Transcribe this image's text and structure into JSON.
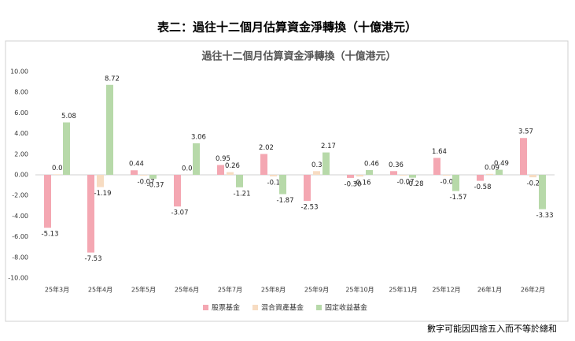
{
  "heading": "表二：過往十二個月估算資金淨轉換（十億港元）",
  "note": "數字可能因四捨五入而不等於總和",
  "chart_data": {
    "type": "bar",
    "title": "過往十二個月估算資金淨轉換（十億港元）",
    "categories": [
      "25年3月",
      "25年4月",
      "25年5月",
      "25年6月",
      "25年7月",
      "25年8月",
      "25年9月",
      "25年10月",
      "25年11月",
      "25年12月",
      "26年1月",
      "26年2月"
    ],
    "series": [
      {
        "name": "股票基金",
        "color": "#f4a7b2",
        "values": [
          -5.13,
          -7.53,
          0.44,
          -3.07,
          0.95,
          2.02,
          -2.53,
          -0.3,
          0.36,
          1.64,
          -0.58,
          3.57
        ],
        "value_labels": [
          "-5.13",
          "-7.53",
          "0.44",
          "-3.07",
          "0.95",
          "2.02",
          "-2.53",
          "-0.30",
          "0.36",
          "1.64",
          "-0.58",
          "3.57"
        ]
      },
      {
        "name": "混合資產基金",
        "color": "#f7dcc2",
        "values": [
          0.05,
          -1.19,
          -0.07,
          0.01,
          0.26,
          -0.15,
          0.36,
          -0.16,
          -0.07,
          -0.07,
          0.09,
          -0.24
        ],
        "value_labels": [
          "0.05",
          "-1.19",
          "-0.07",
          "0.01",
          "0.26",
          "-0.15",
          "0.36",
          "-0.16",
          "-0.07",
          "-0.07",
          "0.09",
          "-0.24"
        ]
      },
      {
        "name": "固定收益基金",
        "color": "#b7d9a9",
        "values": [
          5.08,
          8.72,
          -0.37,
          3.06,
          -1.21,
          -1.87,
          2.17,
          0.46,
          -0.28,
          -1.57,
          0.49,
          -3.33
        ],
        "value_labels": [
          "5.08",
          "8.72",
          "-0.37",
          "3.06",
          "-1.21",
          "-1.87",
          "2.17",
          "0.46",
          "-0.28",
          "-1.57",
          "0.49",
          "-3.33"
        ]
      }
    ],
    "ylim": [
      -10,
      10
    ],
    "yticks": [
      {
        "value": -10,
        "label": "-10.00"
      },
      {
        "value": -8,
        "label": "-8.00"
      },
      {
        "value": -6,
        "label": "-6.00"
      },
      {
        "value": -4,
        "label": "-4.00"
      },
      {
        "value": -2,
        "label": "-2.00"
      },
      {
        "value": 0,
        "label": "0.00"
      },
      {
        "value": 2,
        "label": "2.00"
      },
      {
        "value": 4,
        "label": "4.00"
      },
      {
        "value": 6,
        "label": "6.00"
      },
      {
        "value": 8,
        "label": "8.00"
      },
      {
        "value": 10,
        "label": "10.00"
      }
    ],
    "grid": false,
    "legend": "bottom"
  }
}
